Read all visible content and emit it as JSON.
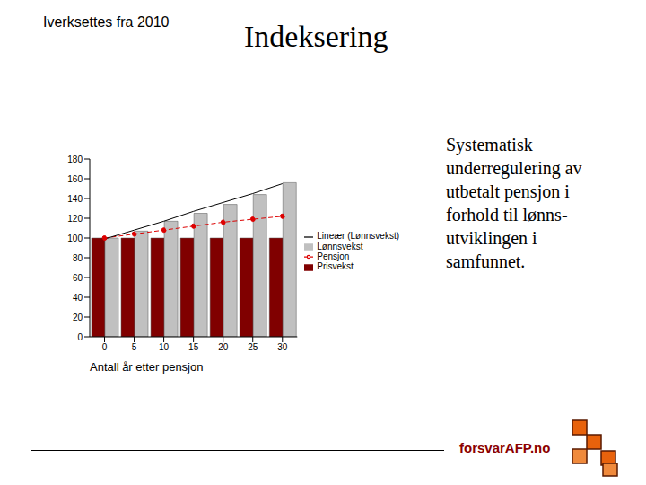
{
  "chart_data": {
    "type": "bar",
    "title": "Indeksering",
    "x_label": "Antall år etter pensjon",
    "categories": [
      "0",
      "5",
      "10",
      "15",
      "20",
      "25",
      "30"
    ],
    "series": [
      {
        "name": "Prisvekst",
        "type": "bar",
        "color": "#800000",
        "values": [
          100,
          100,
          100,
          100,
          100,
          100,
          100
        ]
      },
      {
        "name": "Lønnsvekst",
        "type": "bar",
        "color": "#c0c0c0",
        "values": [
          100,
          107,
          117,
          125,
          134,
          144,
          156
        ]
      },
      {
        "name": "Pensjon",
        "type": "line",
        "color": "#dd0000",
        "line_style": "dashed",
        "marker": "circle",
        "values": [
          100,
          104,
          108,
          112,
          116,
          119,
          122
        ]
      },
      {
        "name": "Lineær (Lønnsvekst)",
        "type": "line",
        "color": "#000000",
        "line_style": "solid",
        "marker": "none",
        "values": [
          99,
          108,
          117,
          127,
          136,
          145,
          155
        ]
      }
    ],
    "ylim": [
      0,
      180
    ],
    "yticks": [
      0,
      20,
      40,
      60,
      80,
      100,
      120,
      140,
      160,
      180
    ],
    "grid": false,
    "legend": "right"
  },
  "slide": {
    "note": "Iverksettes fra 2010",
    "text_lines": [
      "Systematisk",
      "underregulering av",
      "utbetalt pensjon i",
      "forhold til lønns-",
      "utviklingen i",
      "samfunnet."
    ],
    "logo": "forsvarAFP.no"
  }
}
